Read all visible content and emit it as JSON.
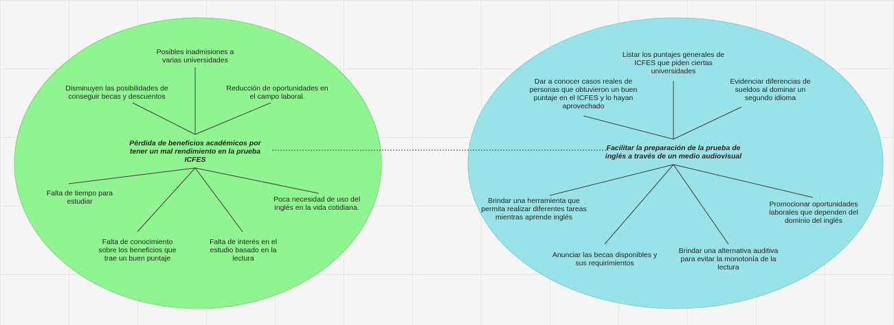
{
  "colors": {
    "background": "#f5f5f5",
    "grid": "#e6e6e6",
    "left_ellipse_fill": "#90f590",
    "left_ellipse_stroke": "#7ad47a",
    "right_ellipse_fill": "#99e3e8",
    "right_ellipse_stroke": "#7ccfd6",
    "line": "#3a3a3a",
    "text": "#222222"
  },
  "left_map": {
    "center": "Pérdida de beneficios académicos por tener un mal rendimiento en la prueba ICFES",
    "effects": [
      "Posibles inadmisiones a varias universidades",
      "Disminuyen las posibilidades de conseguir becas y descuentos",
      "Reducción de oportunidades en el campo laboral."
    ],
    "causes": [
      "Falta de tiempo para estudiar",
      "Falta de conocimiento sobre los beneficios que trae un buen puntaje",
      "Falta de interés en el estudio basado en la lectura",
      "Poca necesidad de uso del inglés en la vida cotidiana."
    ]
  },
  "right_map": {
    "center": "Facilitar la preparación de la prueba de inglés a través de un medio audiovisual",
    "ends": [
      "Listar los puntajes generales de ICFES que piden ciertas universidades",
      "Dar a conocer casos reales de personas que obtuvieron un buen puntaje en el ICFES y lo hayan aprovechado",
      "Evidenciar diferencias de sueldos al dominar un segundo idioma"
    ],
    "means": [
      "Brindar una herramienta que permita realizar diferentes tareas mientras aprende inglés",
      "Anunciar las becas disponibles y sus requirimientos",
      "Brindar una alternativa auditiva para evitar la monotonía de la lectura",
      "Promocionar oportunidades laborales que dependen del dominio del inglés"
    ]
  }
}
